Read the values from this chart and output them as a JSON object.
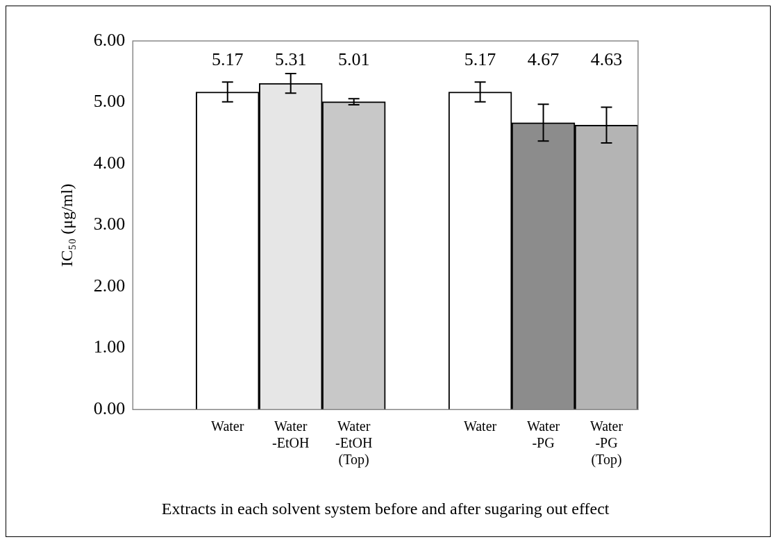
{
  "chart_data": {
    "type": "bar",
    "ylabel": "IC₅₀ (μg/ml)",
    "xlabel": "Extracts in each solvent system before and after sugaring out effect",
    "categories": [
      null,
      "Water",
      "Water\n-EtOH",
      "Water\n-EtOH\n(Top)",
      null,
      "Water",
      "Water\n-PG",
      "Water\n-PG\n(Top)"
    ],
    "values": [
      null,
      5.17,
      5.31,
      5.01,
      null,
      5.17,
      4.67,
      4.63
    ],
    "errors": [
      null,
      0.16,
      0.16,
      0.05,
      null,
      0.16,
      0.3,
      0.29
    ],
    "colors": [
      "#ffffff",
      "#ffffff",
      "#e6e6e6",
      "#c8c8c8",
      "#ffffff",
      "#ffffff",
      "#8c8c8c",
      "#b4b4b4"
    ],
    "ylim": [
      0,
      6
    ],
    "yticks": [
      {
        "value": 0,
        "label": "0.00"
      },
      {
        "value": 1,
        "label": "1.00"
      },
      {
        "value": 2,
        "label": "2.00"
      },
      {
        "value": 3,
        "label": "3.00"
      },
      {
        "value": 4,
        "label": "4.00"
      },
      {
        "value": 5,
        "label": "5.00"
      },
      {
        "value": 6,
        "label": "6.00"
      }
    ],
    "data_labels": true,
    "grid": false,
    "legend": false
  }
}
